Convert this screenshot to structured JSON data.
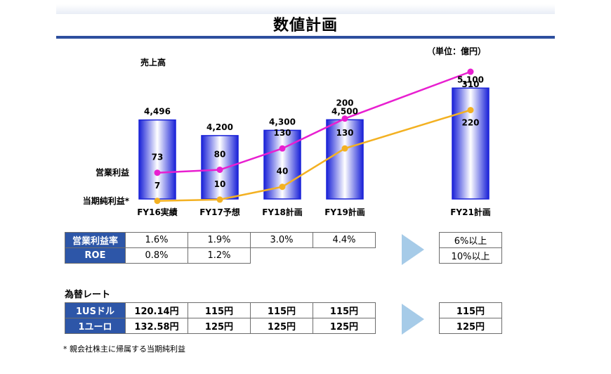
{
  "page": {
    "title": "数値計画",
    "unit": "（単位：億円）"
  },
  "chart_data": {
    "type": "bar",
    "categories": [
      "FY16実績",
      "FY17予想",
      "FY18計画",
      "FY19計画",
      "FY21計画"
    ],
    "sales_label": "売上高",
    "sales": [
      4496,
      4200,
      4300,
      4500,
      5100
    ],
    "sales_labels": [
      "4,496",
      "4,200",
      "4,300",
      "4,500",
      "5,100"
    ],
    "series": [
      {
        "name": "営業利益",
        "values": [
          73,
          80,
          130,
          200,
          310
        ],
        "color": "#e81fd0"
      },
      {
        "name": "当期純利益*",
        "values": [
          7,
          10,
          40,
          130,
          220
        ],
        "color": "#f3b122"
      }
    ],
    "bar_color": "#1a22d8"
  },
  "ratios": {
    "rows": [
      {
        "label": "営業利益率",
        "values": [
          "1.6%",
          "1.9%",
          "3.0%",
          "4.4%"
        ],
        "target": "6%以上"
      },
      {
        "label": "ROE",
        "values": [
          "0.8%",
          "1.2%"
        ],
        "target": "10%以上"
      }
    ]
  },
  "fx": {
    "title": "為替レート",
    "rows": [
      {
        "label": "1USドル",
        "values": [
          "120.14円",
          "115円",
          "115円",
          "115円"
        ],
        "target": "115円"
      },
      {
        "label": "1ユーロ",
        "values": [
          "132.58円",
          "125円",
          "125円",
          "125円"
        ],
        "target": "125円"
      }
    ]
  },
  "footnote": "* 親会社株主に帰属する当期純利益"
}
